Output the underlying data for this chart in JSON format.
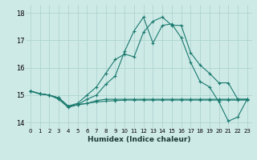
{
  "xlabel": "Humidex (Indice chaleur)",
  "background_color": "#ceeae7",
  "grid_color": "#aed4d0",
  "line_color": "#1a7a6e",
  "xlim": [
    -0.5,
    23.5
  ],
  "ylim": [
    13.8,
    18.3
  ],
  "yticks": [
    14,
    15,
    16,
    17,
    18
  ],
  "xticks": [
    0,
    1,
    2,
    3,
    4,
    5,
    6,
    7,
    8,
    9,
    10,
    11,
    12,
    13,
    14,
    15,
    16,
    17,
    18,
    19,
    20,
    21,
    22,
    23
  ],
  "series": [
    [
      15.15,
      15.05,
      15.0,
      14.9,
      14.6,
      14.7,
      15.0,
      15.3,
      15.8,
      16.3,
      16.5,
      16.4,
      17.3,
      17.7,
      17.85,
      17.55,
      17.55,
      16.55,
      16.1,
      15.8,
      15.45,
      15.45,
      14.85,
      14.85
    ],
    [
      15.15,
      15.05,
      15.0,
      14.85,
      14.55,
      14.65,
      14.85,
      15.0,
      15.4,
      15.7,
      16.6,
      17.35,
      17.85,
      16.9,
      17.55,
      17.6,
      17.1,
      16.2,
      15.5,
      15.3,
      14.75,
      14.05,
      14.2,
      14.85
    ],
    [
      15.15,
      15.05,
      15.0,
      14.9,
      14.6,
      14.65,
      14.7,
      14.8,
      14.85,
      14.85,
      14.85,
      14.85,
      14.85,
      14.85,
      14.85,
      14.85,
      14.85,
      14.85,
      14.85,
      14.85,
      14.85,
      14.85,
      14.85,
      14.85
    ],
    [
      15.15,
      15.05,
      15.0,
      14.9,
      14.6,
      14.65,
      14.7,
      14.75,
      14.78,
      14.8,
      14.82,
      14.82,
      14.82,
      14.82,
      14.82,
      14.82,
      14.82,
      14.82,
      14.82,
      14.82,
      14.82,
      14.82,
      14.82,
      14.82
    ]
  ]
}
